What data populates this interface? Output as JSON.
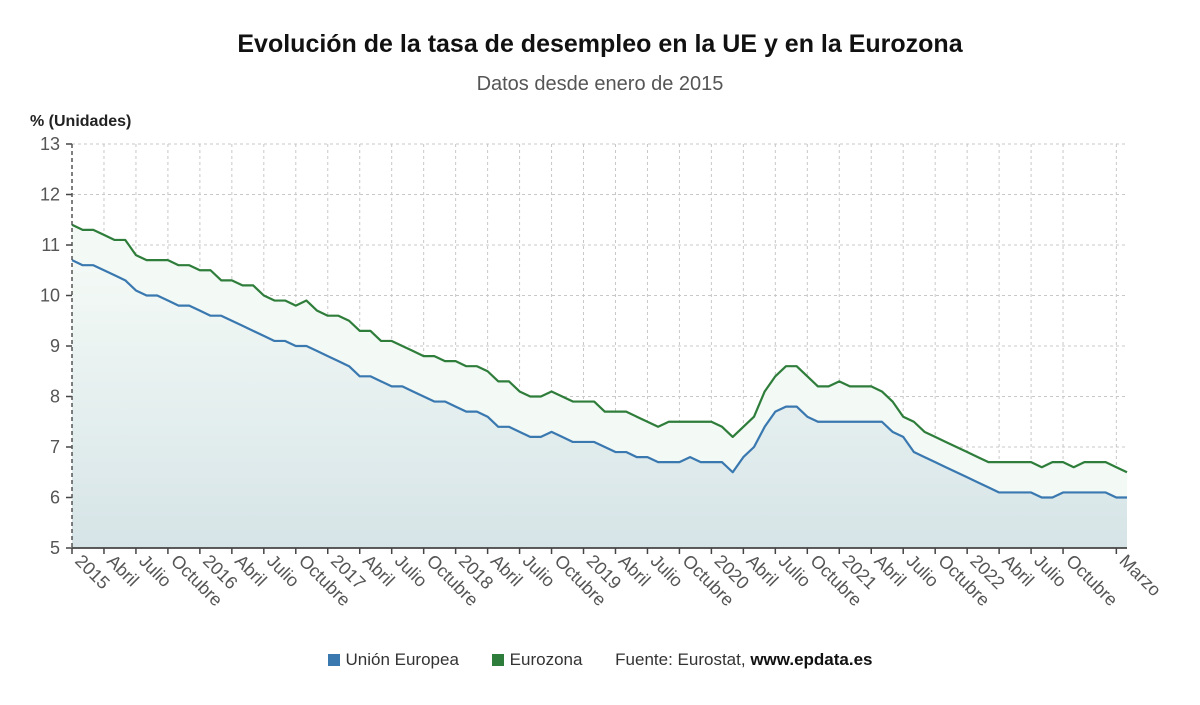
{
  "chart_data": {
    "type": "line",
    "title": "Evolución de la tasa de desempleo en la UE y en la Eurozona",
    "subtitle": "Datos desde enero de 2015",
    "ylabel": "% (Unidades)",
    "xlabel": "",
    "ylim": [
      5,
      13
    ],
    "yticks": [
      5,
      6,
      7,
      8,
      9,
      10,
      11,
      12,
      13
    ],
    "grid": true,
    "legend_position": "bottom",
    "x_start": "2015-01",
    "x_end": "2023-03",
    "xticks": [
      {
        "label": "2015",
        "month": 0
      },
      {
        "label": "Abril",
        "month": 3
      },
      {
        "label": "Julio",
        "month": 6
      },
      {
        "label": "Octubre",
        "month": 9
      },
      {
        "label": "2016",
        "month": 12
      },
      {
        "label": "Abril",
        "month": 15
      },
      {
        "label": "Julio",
        "month": 18
      },
      {
        "label": "Octubre",
        "month": 21
      },
      {
        "label": "2017",
        "month": 24
      },
      {
        "label": "Abril",
        "month": 27
      },
      {
        "label": "Julio",
        "month": 30
      },
      {
        "label": "Octubre",
        "month": 33
      },
      {
        "label": "2018",
        "month": 36
      },
      {
        "label": "Abril",
        "month": 39
      },
      {
        "label": "Julio",
        "month": 42
      },
      {
        "label": "Octubre",
        "month": 45
      },
      {
        "label": "2019",
        "month": 48
      },
      {
        "label": "Abril",
        "month": 51
      },
      {
        "label": "Julio",
        "month": 54
      },
      {
        "label": "Octubre",
        "month": 57
      },
      {
        "label": "2020",
        "month": 60
      },
      {
        "label": "Abril",
        "month": 63
      },
      {
        "label": "Julio",
        "month": 66
      },
      {
        "label": "Octubre",
        "month": 69
      },
      {
        "label": "2021",
        "month": 72
      },
      {
        "label": "Abril",
        "month": 75
      },
      {
        "label": "Julio",
        "month": 78
      },
      {
        "label": "Octubre",
        "month": 81
      },
      {
        "label": "2022",
        "month": 84
      },
      {
        "label": "Abril",
        "month": 87
      },
      {
        "label": "Julio",
        "month": 90
      },
      {
        "label": "Octubre",
        "month": 93
      },
      {
        "label": "Marzo",
        "month": 98
      }
    ],
    "series": [
      {
        "name": "Unión Europea",
        "color": "#3a78b0",
        "values": [
          10.7,
          10.6,
          10.6,
          10.5,
          10.4,
          10.3,
          10.1,
          10.0,
          10.0,
          9.9,
          9.8,
          9.8,
          9.7,
          9.6,
          9.6,
          9.5,
          9.4,
          9.3,
          9.2,
          9.1,
          9.1,
          9.0,
          9.0,
          8.9,
          8.8,
          8.7,
          8.6,
          8.4,
          8.4,
          8.3,
          8.2,
          8.2,
          8.1,
          8.0,
          7.9,
          7.9,
          7.8,
          7.7,
          7.7,
          7.6,
          7.4,
          7.4,
          7.3,
          7.2,
          7.2,
          7.3,
          7.2,
          7.1,
          7.1,
          7.1,
          7.0,
          6.9,
          6.9,
          6.8,
          6.8,
          6.7,
          6.7,
          6.7,
          6.8,
          6.7,
          6.7,
          6.7,
          6.5,
          6.8,
          7.0,
          7.4,
          7.7,
          7.8,
          7.8,
          7.6,
          7.5,
          7.5,
          7.5,
          7.5,
          7.5,
          7.5,
          7.5,
          7.3,
          7.2,
          6.9,
          6.8,
          6.7,
          6.6,
          6.5,
          6.4,
          6.3,
          6.2,
          6.1,
          6.1,
          6.1,
          6.1,
          6.0,
          6.0,
          6.1,
          6.1,
          6.1,
          6.1,
          6.1,
          6.0,
          6.0
        ]
      },
      {
        "name": "Eurozona",
        "color": "#2e7d3a",
        "values": [
          11.4,
          11.3,
          11.3,
          11.2,
          11.1,
          11.1,
          10.8,
          10.7,
          10.7,
          10.7,
          10.6,
          10.6,
          10.5,
          10.5,
          10.3,
          10.3,
          10.2,
          10.2,
          10.0,
          9.9,
          9.9,
          9.8,
          9.9,
          9.7,
          9.6,
          9.6,
          9.5,
          9.3,
          9.3,
          9.1,
          9.1,
          9.0,
          8.9,
          8.8,
          8.8,
          8.7,
          8.7,
          8.6,
          8.6,
          8.5,
          8.3,
          8.3,
          8.1,
          8.0,
          8.0,
          8.1,
          8.0,
          7.9,
          7.9,
          7.9,
          7.7,
          7.7,
          7.7,
          7.6,
          7.5,
          7.4,
          7.5,
          7.5,
          7.5,
          7.5,
          7.5,
          7.4,
          7.2,
          7.4,
          7.6,
          8.1,
          8.4,
          8.6,
          8.6,
          8.4,
          8.2,
          8.2,
          8.3,
          8.2,
          8.2,
          8.2,
          8.1,
          7.9,
          7.6,
          7.5,
          7.3,
          7.2,
          7.1,
          7.0,
          6.9,
          6.8,
          6.7,
          6.7,
          6.7,
          6.7,
          6.7,
          6.6,
          6.7,
          6.7,
          6.6,
          6.7,
          6.7,
          6.7,
          6.6,
          6.5
        ]
      }
    ]
  },
  "legend": {
    "items": [
      {
        "label": "Unión Europea",
        "color": "#3a78b0"
      },
      {
        "label": "Eurozona",
        "color": "#2e7d3a"
      }
    ],
    "source_prefix": "Fuente: Eurostat,",
    "source_site": "www.epdata.es"
  }
}
